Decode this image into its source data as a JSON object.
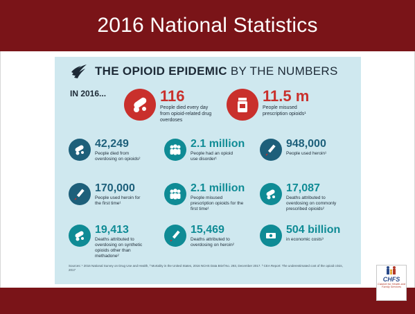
{
  "slide": {
    "title": "2016 National Statistics"
  },
  "infographic": {
    "title_bold": "THE OPIOID EPIDEMIC",
    "title_light": " BY THE NUMBERS",
    "year_label": "IN 2016...",
    "featured": [
      {
        "value": "116",
        "description": "People died every day from opioid-related drug overdoses",
        "icon": "pills-icon"
      },
      {
        "value": "11.5 m",
        "description": "People misused prescription opioids¹",
        "icon": "prescription-bottle-icon"
      }
    ],
    "stats": [
      {
        "value": "42,249",
        "description": "People died from overdosing on opioids²",
        "icon": "pills-icon",
        "color": "blue"
      },
      {
        "value": "2.1 million",
        "description": "People had an opioid use disorder¹",
        "icon": "people-group-icon",
        "color": "teal"
      },
      {
        "value": "948,000",
        "description": "People used heroin¹",
        "icon": "syringe-icon",
        "color": "blue"
      },
      {
        "value": "170,000",
        "description": "People used heroin for the first time¹",
        "icon": "syringe-icon",
        "color": "blue"
      },
      {
        "value": "2.1 million",
        "description": "People misused prescription opioids for the first time¹",
        "icon": "people-group-icon",
        "color": "teal"
      },
      {
        "value": "17,087",
        "description": "Deaths attributed to overdosing on commonly prescribed opioids²",
        "icon": "pills-icon",
        "color": "teal"
      },
      {
        "value": "19,413",
        "description": "Deaths attributed to overdosing on synthetic opioids other than methadone²",
        "icon": "pills-icon",
        "color": "teal"
      },
      {
        "value": "15,469",
        "description": "Deaths attributed to overdosing on heroin²",
        "icon": "syringe-icon",
        "color": "teal"
      },
      {
        "value": "504 billion",
        "description": "in economic costs³",
        "icon": "money-icon",
        "color": "teal"
      }
    ],
    "sources": "Sources: ¹ 2016 National Survey on Drug Use and Health, ² Mortality in the United States, 2016 NCHS Data Brief No. 293, December 2017. ³ CEA Report: The underestimated cost of the opioid crisis, 2017"
  },
  "logo": {
    "text": "CHFS",
    "subtext": "Cabinet for Health and Family Services"
  },
  "colors": {
    "band": "#7a1418",
    "infographic_bg": "#cfe8ef",
    "red": "#c9302c",
    "blue": "#1d5f7a",
    "teal": "#0f8b95"
  }
}
